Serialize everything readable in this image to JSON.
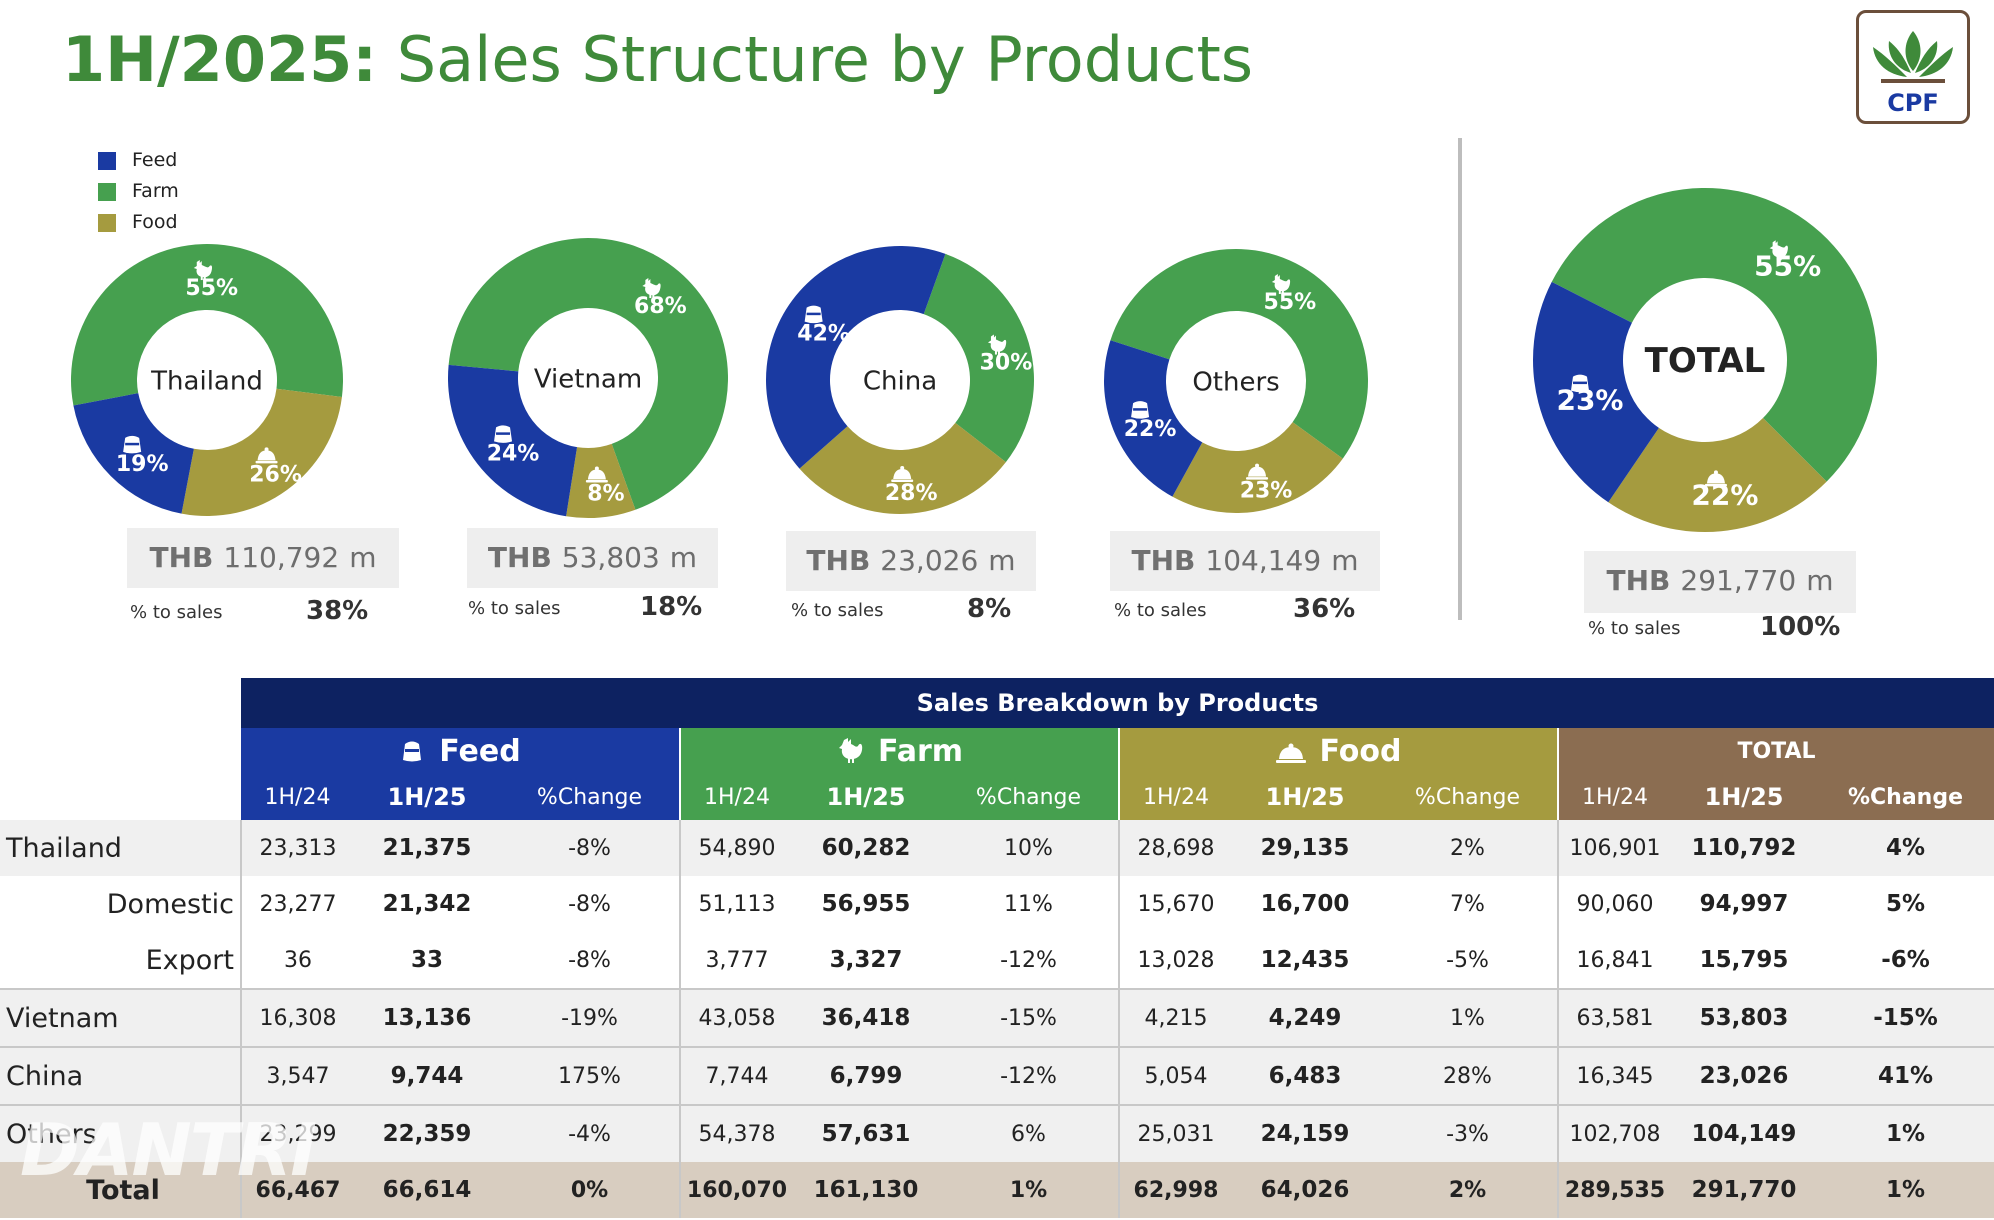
{
  "title": {
    "year": "1H/2025:",
    "text": "Sales Structure by Products"
  },
  "logo_text": "CPF",
  "colors": {
    "feed": "#1a3aa2",
    "farm": "#46a04f",
    "food": "#a59b3f",
    "total": "#8b6d51",
    "header": "#0d2261",
    "title": "#3f8a3a"
  },
  "legend": [
    {
      "label": "Feed",
      "color": "#1a3aa2"
    },
    {
      "label": "Farm",
      "color": "#46a04f"
    },
    {
      "label": "Food",
      "color": "#a59b3f"
    }
  ],
  "chart_data": [
    {
      "type": "pie",
      "center_label": "Thailand",
      "categories": [
        "Feed",
        "Farm",
        "Food"
      ],
      "values": [
        19,
        55,
        26
      ],
      "labels": [
        "19%",
        "55%",
        "26%"
      ],
      "amount": "110,792",
      "currency": "THB",
      "unit": "m",
      "share_label": "% to sales",
      "share": "38%"
    },
    {
      "type": "pie",
      "center_label": "Vietnam",
      "categories": [
        "Feed",
        "Farm",
        "Food"
      ],
      "values": [
        24,
        68,
        8
      ],
      "labels": [
        "24%",
        "68%",
        "8%"
      ],
      "amount": "53,803",
      "currency": "THB",
      "unit": "m",
      "share_label": "% to sales",
      "share": "18%"
    },
    {
      "type": "pie",
      "center_label": "China",
      "categories": [
        "Feed",
        "Farm",
        "Food"
      ],
      "values": [
        42,
        30,
        28
      ],
      "labels": [
        "42%",
        "30%",
        "28%"
      ],
      "amount": "23,026",
      "currency": "THB",
      "unit": "m",
      "share_label": "% to sales",
      "share": "8%"
    },
    {
      "type": "pie",
      "center_label": "Others",
      "categories": [
        "Feed",
        "Farm",
        "Food"
      ],
      "values": [
        22,
        55,
        23
      ],
      "labels": [
        "22%",
        "55%",
        "23%"
      ],
      "amount": "104,149",
      "currency": "THB",
      "unit": "m",
      "share_label": "% to sales",
      "share": "36%"
    },
    {
      "type": "pie",
      "center_label": "TOTAL",
      "categories": [
        "Feed",
        "Farm",
        "Food"
      ],
      "values": [
        23,
        55,
        22
      ],
      "labels": [
        "23%",
        "55%",
        "22%"
      ],
      "amount": "291,770",
      "currency": "THB",
      "unit": "m",
      "share_label": "% to sales",
      "share": "100%"
    }
  ],
  "table": {
    "title": "Sales Breakdown by Products",
    "sections": [
      "Feed",
      "Farm",
      "Food",
      "TOTAL"
    ],
    "sub_headers": [
      "1H/24",
      "1H/25",
      "%Change"
    ],
    "rows": [
      {
        "label": "Thailand",
        "values": [
          "23,313",
          "21,375",
          "-8%",
          "54,890",
          "60,282",
          "10%",
          "28,698",
          "29,135",
          "2%",
          "106,901",
          "110,792",
          "4%"
        ]
      },
      {
        "label": "Domestic",
        "values": [
          "23,277",
          "21,342",
          "-8%",
          "51,113",
          "56,955",
          "11%",
          "15,670",
          "16,700",
          "7%",
          "90,060",
          "94,997",
          "5%"
        ]
      },
      {
        "label": "Export",
        "values": [
          "36",
          "33",
          "-8%",
          "3,777",
          "3,327",
          "-12%",
          "13,028",
          "12,435",
          "-5%",
          "16,841",
          "15,795",
          "-6%"
        ]
      },
      {
        "label": "Vietnam",
        "values": [
          "16,308",
          "13,136",
          "-19%",
          "43,058",
          "36,418",
          "-15%",
          "4,215",
          "4,249",
          "1%",
          "63,581",
          "53,803",
          "-15%"
        ]
      },
      {
        "label": "China",
        "values": [
          "3,547",
          "9,744",
          "175%",
          "7,744",
          "6,799",
          "-12%",
          "5,054",
          "6,483",
          "28%",
          "16,345",
          "23,026",
          "41%"
        ]
      },
      {
        "label": "Others",
        "values": [
          "23,299",
          "22,359",
          "-4%",
          "54,378",
          "57,631",
          "6%",
          "25,031",
          "24,159",
          "-3%",
          "102,708",
          "104,149",
          "1%"
        ]
      },
      {
        "label": "Total",
        "values": [
          "66,467",
          "66,614",
          "0%",
          "160,070",
          "161,130",
          "1%",
          "62,998",
          "64,026",
          "2%",
          "289,535",
          "291,770",
          "1%"
        ]
      }
    ]
  },
  "watermark": "DANTRI"
}
